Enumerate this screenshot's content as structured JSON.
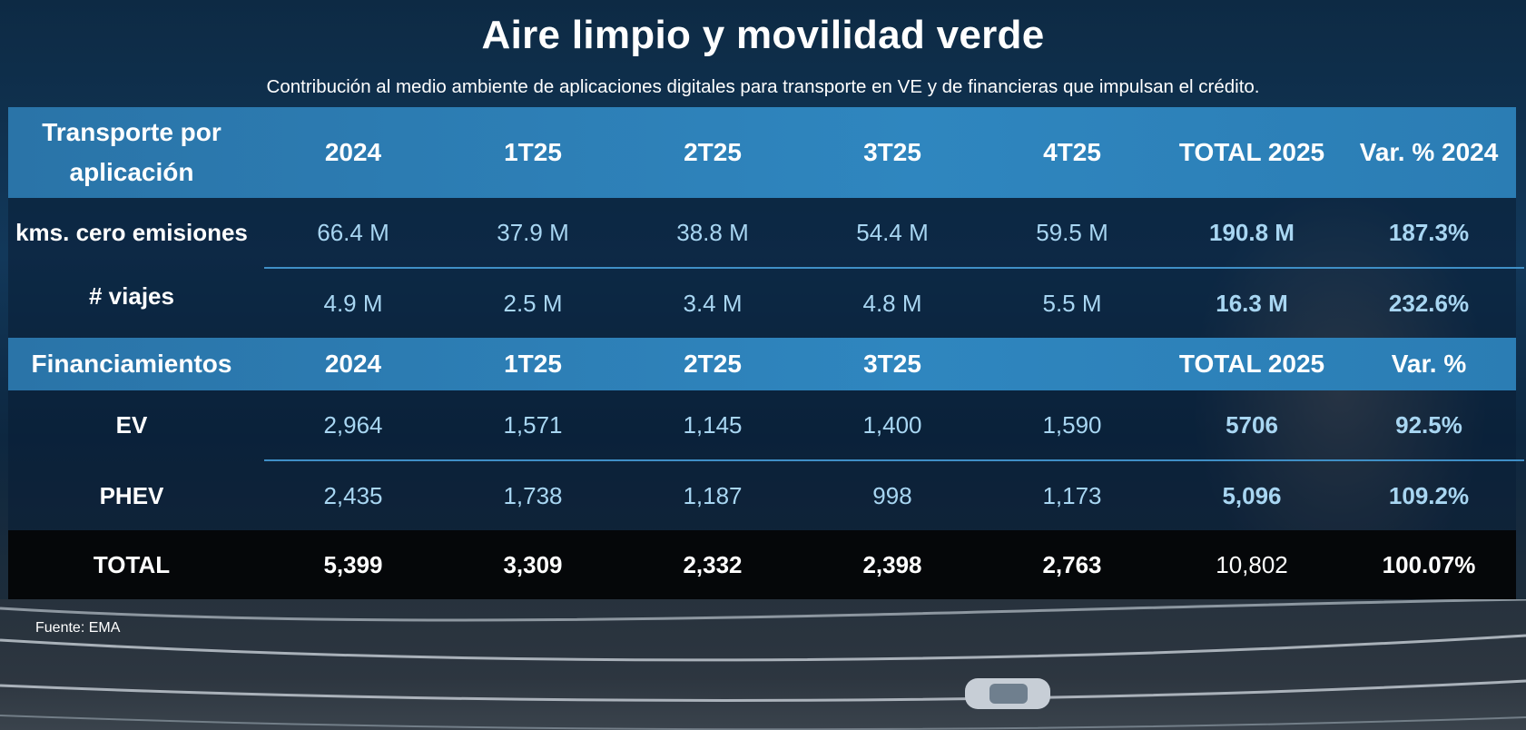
{
  "title": "Aire limpio y movilidad verde",
  "subtitle": "Contribución al medio ambiente de aplicaciones digitales para transporte en VE y de financieras que impulsan el crédito.",
  "source": "Fuente: EMA",
  "transport": {
    "header": [
      "Transporte por aplicación",
      "2024",
      "1T25",
      "2T25",
      "3T25",
      "4T25",
      "TOTAL 2025",
      "Var. % 2024"
    ],
    "rows": [
      {
        "label": "kms. cero emisiones",
        "values": [
          "66.4 M",
          "37.9 M",
          "38.8 M",
          "54.4 M",
          "59.5 M",
          "190.8 M",
          "187.3%"
        ]
      },
      {
        "label": "# viajes",
        "values": [
          "4.9 M",
          "2.5 M",
          "3.4 M",
          "4.8 M",
          "5.5 M",
          "16.3 M",
          "232.6%"
        ]
      }
    ]
  },
  "financing": {
    "header": [
      "Financiamientos",
      "2024",
      "1T25",
      "2T25",
      "3T25",
      "",
      "TOTAL 2025",
      "Var. %"
    ],
    "rows": [
      {
        "label": "EV",
        "values": [
          "2,964",
          "1,571",
          "1,145",
          "1,400",
          "1,590",
          "5706",
          "92.5%"
        ]
      },
      {
        "label": "PHEV",
        "values": [
          "2,435",
          "1,738",
          "1,187",
          "998",
          "1,173",
          "5,096",
          "109.2%"
        ]
      }
    ],
    "total": {
      "label": "TOTAL",
      "values": [
        "5,399",
        "3,309",
        "2,332",
        "2,398",
        "2,763",
        "10,802",
        "100.07%"
      ]
    }
  },
  "chart_data": {
    "type": "table",
    "title": "Aire limpio y movilidad verde",
    "subtitle": "Contribución al medio ambiente de aplicaciones digitales para transporte en VE y de financieras que impulsan el crédito.",
    "tables": [
      {
        "columns": [
          "Transporte por aplicación",
          "2024",
          "1T25",
          "2T25",
          "3T25",
          "4T25",
          "TOTAL 2025",
          "Var. % 2024"
        ],
        "rows": [
          [
            "kms. cero emisiones",
            "66.4 M",
            "37.9 M",
            "38.8 M",
            "54.4 M",
            "59.5 M",
            "190.8 M",
            "187.3%"
          ],
          [
            "# viajes",
            "4.9 M",
            "2.5 M",
            "3.4 M",
            "4.8 M",
            "5.5 M",
            "16.3 M",
            "232.6%"
          ]
        ]
      },
      {
        "columns": [
          "Financiamientos",
          "2024",
          "1T25",
          "2T25",
          "3T25",
          "",
          "TOTAL 2025",
          "Var. %"
        ],
        "rows": [
          [
            "EV",
            "2,964",
            "1,571",
            "1,145",
            "1,400",
            "1,590",
            "5706",
            "92.5%"
          ],
          [
            "PHEV",
            "2,435",
            "1,738",
            "1,187",
            "998",
            "1,173",
            "5,096",
            "109.2%"
          ],
          [
            "TOTAL",
            "5,399",
            "3,309",
            "2,332",
            "2,398",
            "2,763",
            "10,802",
            "100.07%"
          ]
        ]
      }
    ]
  }
}
